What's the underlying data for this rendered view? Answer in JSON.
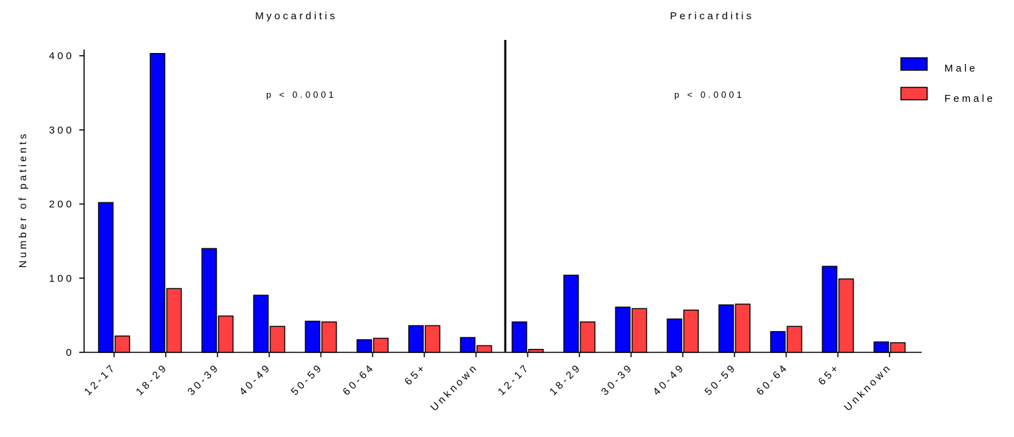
{
  "chart_data": {
    "type": "bar",
    "ylabel": "Number of patients",
    "ylim": [
      0,
      400
    ],
    "yticks": [
      0,
      100,
      200,
      300,
      400
    ],
    "grid": false,
    "legend_position": "top-right",
    "colors": {
      "Male": "#0000ff",
      "Female": "#ff4040"
    },
    "panels": [
      {
        "title": "Myocarditis",
        "annotation": "p < 0.0001",
        "categories": [
          "12-17",
          "18-29",
          "30-39",
          "40-49",
          "50-59",
          "60-64",
          "65+",
          "Unknown"
        ],
        "series": [
          {
            "name": "Male",
            "values": [
              202,
              403,
              140,
              77,
              42,
              17,
              36,
              20
            ]
          },
          {
            "name": "Female",
            "values": [
              22,
              86,
              49,
              35,
              41,
              19,
              36,
              9
            ]
          }
        ]
      },
      {
        "title": "Pericarditis",
        "annotation": "p < 0.0001",
        "categories": [
          "12-17",
          "18-29",
          "30-39",
          "40-49",
          "50-59",
          "60-64",
          "65+",
          "Unknown"
        ],
        "series": [
          {
            "name": "Male",
            "values": [
              41,
              104,
              61,
              45,
              64,
              28,
              116,
              14
            ]
          },
          {
            "name": "Female",
            "values": [
              4,
              41,
              59,
              57,
              65,
              35,
              99,
              13
            ]
          }
        ]
      }
    ]
  }
}
